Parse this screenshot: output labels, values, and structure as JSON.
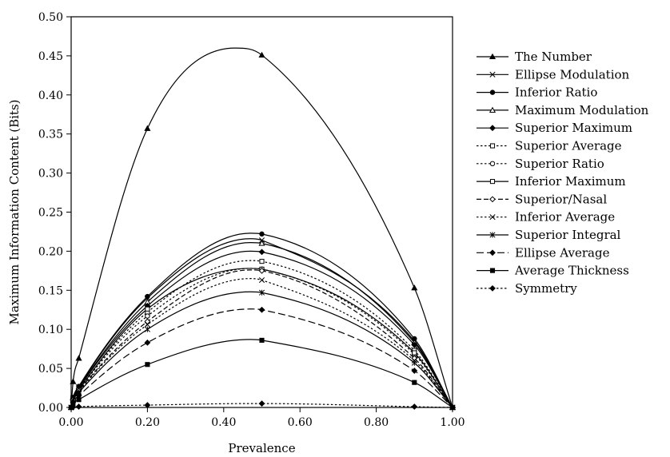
{
  "chart_data": {
    "type": "line",
    "title": "",
    "xlabel": "Prevalence",
    "ylabel": "Maximum Information Content (Bits)",
    "xlim": [
      0,
      1
    ],
    "ylim": [
      0,
      0.5
    ],
    "x_ticks": [
      "0.00",
      "0.20",
      "0.40",
      "0.60",
      "0.80",
      "1.00"
    ],
    "y_ticks": [
      "0.00",
      "0.05",
      "0.10",
      "0.15",
      "0.20",
      "0.25",
      "0.30",
      "0.35",
      "0.40",
      "0.45",
      "0.50"
    ],
    "grid": false,
    "legend_position": "right",
    "series": [
      {
        "name": "The Number",
        "marker": "filled-triangle",
        "dash": "solid",
        "peak_x": 0.43,
        "peak_y": 0.46,
        "points": [
          [
            0,
            0
          ],
          [
            0.005,
            0.033
          ],
          [
            0.02,
            0.063
          ],
          [
            0.2,
            0.357
          ],
          [
            0.5,
            0.451
          ],
          [
            0.9,
            0.153
          ],
          [
            1.0,
            0
          ]
        ]
      },
      {
        "name": "Ellipse Modulation",
        "marker": "x",
        "dash": "solid",
        "peak_x": 0.47,
        "peak_y": 0.216,
        "points": [
          [
            0,
            0
          ],
          [
            0.005,
            0.012
          ],
          [
            0.02,
            0.026
          ],
          [
            0.2,
            0.14
          ],
          [
            0.5,
            0.214
          ],
          [
            0.9,
            0.085
          ],
          [
            1.0,
            0
          ]
        ]
      },
      {
        "name": "Inferior Ratio",
        "marker": "filled-circle",
        "dash": "solid",
        "peak_x": 0.47,
        "peak_y": 0.223,
        "points": [
          [
            0,
            0
          ],
          [
            0.005,
            0.013
          ],
          [
            0.02,
            0.027
          ],
          [
            0.2,
            0.142
          ],
          [
            0.5,
            0.222
          ],
          [
            0.9,
            0.088
          ],
          [
            1.0,
            0
          ]
        ]
      },
      {
        "name": "Maximum Modulation",
        "marker": "open-triangle",
        "dash": "solid",
        "peak_x": 0.47,
        "peak_y": 0.211,
        "points": [
          [
            0,
            0
          ],
          [
            0.005,
            0.012
          ],
          [
            0.02,
            0.025
          ],
          [
            0.2,
            0.135
          ],
          [
            0.5,
            0.21
          ],
          [
            0.9,
            0.083
          ],
          [
            1.0,
            0
          ]
        ]
      },
      {
        "name": "Superior Maximum",
        "marker": "filled-diamond",
        "dash": "solid",
        "peak_x": 0.47,
        "peak_y": 0.2,
        "points": [
          [
            0,
            0
          ],
          [
            0.005,
            0.011
          ],
          [
            0.02,
            0.024
          ],
          [
            0.2,
            0.13
          ],
          [
            0.5,
            0.199
          ],
          [
            0.9,
            0.08
          ],
          [
            1.0,
            0
          ]
        ]
      },
      {
        "name": "Superior Average",
        "marker": "open-square",
        "dash": "dotted",
        "peak_x": 0.47,
        "peak_y": 0.188,
        "points": [
          [
            0,
            0
          ],
          [
            0.005,
            0.011
          ],
          [
            0.02,
            0.023
          ],
          [
            0.2,
            0.122
          ],
          [
            0.5,
            0.187
          ],
          [
            0.9,
            0.073
          ],
          [
            1.0,
            0
          ]
        ]
      },
      {
        "name": "Superior Ratio",
        "marker": "open-circle",
        "dash": "dotted",
        "peak_x": 0.47,
        "peak_y": 0.178,
        "points": [
          [
            0,
            0
          ],
          [
            0.005,
            0.01
          ],
          [
            0.02,
            0.022
          ],
          [
            0.2,
            0.117
          ],
          [
            0.5,
            0.177
          ],
          [
            0.9,
            0.068
          ],
          [
            1.0,
            0
          ]
        ]
      },
      {
        "name": "Inferior Maximum",
        "marker": "open-square",
        "dash": "solid",
        "peak_x": 0.47,
        "peak_y": 0.178,
        "points": [
          [
            0,
            0
          ],
          [
            0.005,
            0.01
          ],
          [
            0.02,
            0.022
          ],
          [
            0.2,
            0.126
          ],
          [
            0.5,
            0.177
          ],
          [
            0.9,
            0.07
          ],
          [
            1.0,
            0
          ]
        ]
      },
      {
        "name": "Superior/Nasal",
        "marker": "open-diamond",
        "dash": "dashed",
        "peak_x": 0.47,
        "peak_y": 0.176,
        "points": [
          [
            0,
            0
          ],
          [
            0.005,
            0.01
          ],
          [
            0.02,
            0.021
          ],
          [
            0.2,
            0.11
          ],
          [
            0.5,
            0.175
          ],
          [
            0.9,
            0.063
          ],
          [
            1.0,
            0
          ]
        ]
      },
      {
        "name": "Inferior Average",
        "marker": "x",
        "dash": "dotted",
        "peak_x": 0.47,
        "peak_y": 0.165,
        "points": [
          [
            0,
            0
          ],
          [
            0.005,
            0.009
          ],
          [
            0.02,
            0.02
          ],
          [
            0.2,
            0.106
          ],
          [
            0.5,
            0.163
          ],
          [
            0.9,
            0.06
          ],
          [
            1.0,
            0
          ]
        ]
      },
      {
        "name": "Superior Integral",
        "marker": "star",
        "dash": "solid",
        "peak_x": 0.47,
        "peak_y": 0.148,
        "points": [
          [
            0,
            0
          ],
          [
            0.005,
            0.009
          ],
          [
            0.02,
            0.019
          ],
          [
            0.2,
            0.1
          ],
          [
            0.5,
            0.147
          ],
          [
            0.9,
            0.057
          ],
          [
            1.0,
            0
          ]
        ]
      },
      {
        "name": "Ellipse Average",
        "marker": "filled-diamond",
        "dash": "long-dash",
        "peak_x": 0.47,
        "peak_y": 0.126,
        "points": [
          [
            0,
            0
          ],
          [
            0.005,
            0.007
          ],
          [
            0.02,
            0.015
          ],
          [
            0.2,
            0.083
          ],
          [
            0.5,
            0.125
          ],
          [
            0.9,
            0.047
          ],
          [
            1.0,
            0
          ]
        ]
      },
      {
        "name": "Average Thickness",
        "marker": "filled-square",
        "dash": "solid",
        "peak_x": 0.47,
        "peak_y": 0.087,
        "points": [
          [
            0,
            0
          ],
          [
            0.005,
            0.005
          ],
          [
            0.02,
            0.01
          ],
          [
            0.2,
            0.055
          ],
          [
            0.5,
            0.086
          ],
          [
            0.9,
            0.032
          ],
          [
            1.0,
            0
          ]
        ]
      },
      {
        "name": "Symmetry",
        "marker": "filled-diamond",
        "dash": "dotted",
        "peak_x": 0.47,
        "peak_y": 0.005,
        "points": [
          [
            0,
            0
          ],
          [
            0.005,
            0.0005
          ],
          [
            0.02,
            0.001
          ],
          [
            0.2,
            0.003
          ],
          [
            0.5,
            0.005
          ],
          [
            0.9,
            0.001
          ],
          [
            1.0,
            0
          ]
        ]
      }
    ]
  }
}
